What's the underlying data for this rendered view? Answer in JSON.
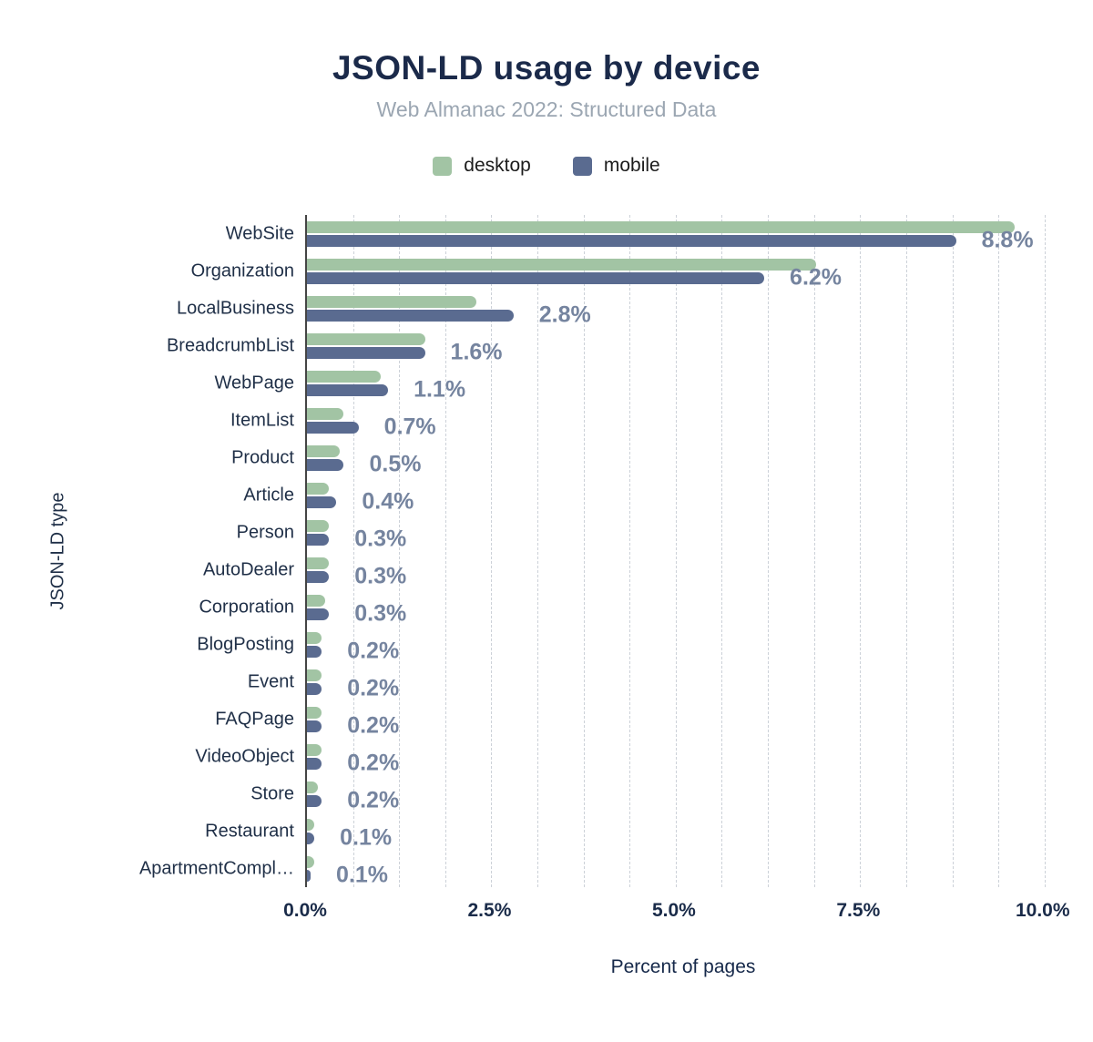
{
  "chart_data": {
    "type": "bar",
    "orientation": "horizontal",
    "title": "JSON-LD usage by device",
    "subtitle": "Web Almanac 2022: Structured Data",
    "xlabel": "Percent of pages",
    "ylabel": "JSON-LD type",
    "xlim": [
      0,
      10.25
    ],
    "grid_step": 0.625,
    "x_ticks": [
      "0.0%",
      "2.5%",
      "5.0%",
      "7.5%",
      "10.0%"
    ],
    "x_tick_values": [
      0,
      2.5,
      5,
      7.5,
      10
    ],
    "legend": [
      {
        "name": "desktop",
        "color": "#a2c4a4"
      },
      {
        "name": "mobile",
        "color": "#5a6b90"
      }
    ],
    "categories": [
      "WebSite",
      "Organization",
      "LocalBusiness",
      "BreadcrumbList",
      "WebPage",
      "ItemList",
      "Product",
      "Article",
      "Person",
      "AutoDealer",
      "Corporation",
      "BlogPosting",
      "Event",
      "FAQPage",
      "VideoObject",
      "Store",
      "Restaurant",
      "ApartmentCompl…"
    ],
    "series": [
      {
        "name": "desktop",
        "values": [
          9.6,
          6.9,
          2.3,
          1.6,
          1.0,
          0.5,
          0.45,
          0.3,
          0.3,
          0.3,
          0.25,
          0.2,
          0.2,
          0.2,
          0.2,
          0.15,
          0.1,
          0.1
        ]
      },
      {
        "name": "mobile",
        "values": [
          8.8,
          6.2,
          2.8,
          1.6,
          1.1,
          0.7,
          0.5,
          0.4,
          0.3,
          0.3,
          0.3,
          0.2,
          0.2,
          0.2,
          0.2,
          0.2,
          0.1,
          0.05
        ]
      }
    ],
    "value_labels": [
      "8.8%",
      "6.2%",
      "2.8%",
      "1.6%",
      "1.1%",
      "0.7%",
      "0.5%",
      "0.4%",
      "0.3%",
      "0.3%",
      "0.3%",
      "0.2%",
      "0.2%",
      "0.2%",
      "0.2%",
      "0.2%",
      "0.1%",
      "0.1%"
    ],
    "grid": true,
    "legend_position": "top"
  },
  "colors": {
    "title": "#1b2a4a",
    "subtitle": "#9ba6b2",
    "value_label": "#75849f",
    "axis_line": "#454545",
    "gridline": "#ccd1d8",
    "background": "#ffffff"
  }
}
